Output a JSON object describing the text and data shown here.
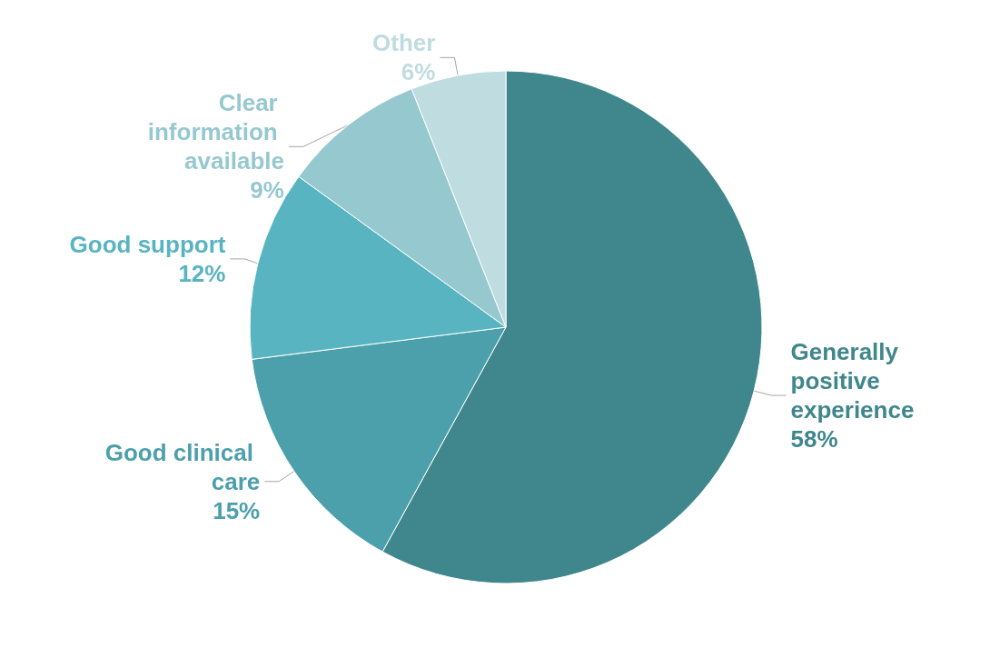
{
  "chart_data": {
    "type": "pie",
    "categories": [
      "Generally positive experience",
      "Good clinical care",
      "Good support",
      "Clear information available",
      "Other"
    ],
    "values": [
      58,
      15,
      12,
      9,
      6
    ],
    "colors": [
      "#3f878c",
      "#4ca0ab",
      "#58b4c0",
      "#96c8d0",
      "#bfdce0"
    ],
    "value_labels": [
      "58%",
      "15%",
      "12%",
      "9%",
      "6%"
    ],
    "legend": false
  }
}
